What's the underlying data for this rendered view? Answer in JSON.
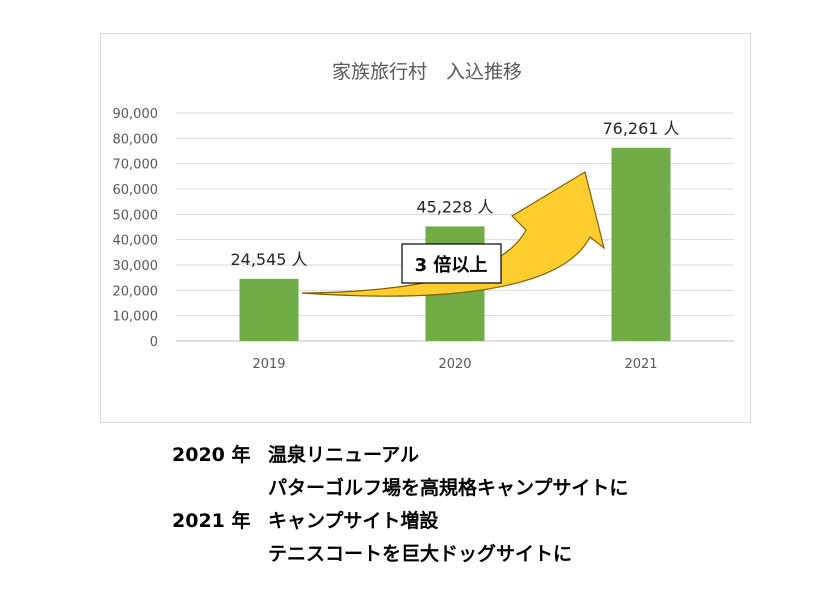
{
  "chart_data": {
    "type": "bar",
    "title": "家族旅行村　入込推移",
    "categories": [
      "2019",
      "2020",
      "2021"
    ],
    "values": [
      24545,
      45228,
      76261
    ],
    "value_labels": [
      "24,545 人",
      "45,228 人",
      "76,261 人"
    ],
    "ylim": [
      0,
      90000
    ],
    "ytick_labels": [
      "0",
      "10,000",
      "20,000",
      "30,000",
      "40,000",
      "50,000",
      "60,000",
      "70,000",
      "80,000",
      "90,000"
    ],
    "grid": true,
    "xlabel": "",
    "ylabel": "",
    "bar_color": "#70ad47",
    "annotation": {
      "text": "3 倍以上",
      "arrow_color": "#ffcd2e",
      "arrow_stroke": "#7f6000"
    }
  },
  "notes": [
    {
      "year": "2020 年",
      "text": "温泉リニューアル"
    },
    {
      "year": "",
      "text": "パターゴルフ場を高規格キャンプサイトに"
    },
    {
      "year": "2021 年",
      "text": "キャンプサイト増設"
    },
    {
      "year": "",
      "text": "テニスコートを巨大ドッグサイトに"
    }
  ]
}
